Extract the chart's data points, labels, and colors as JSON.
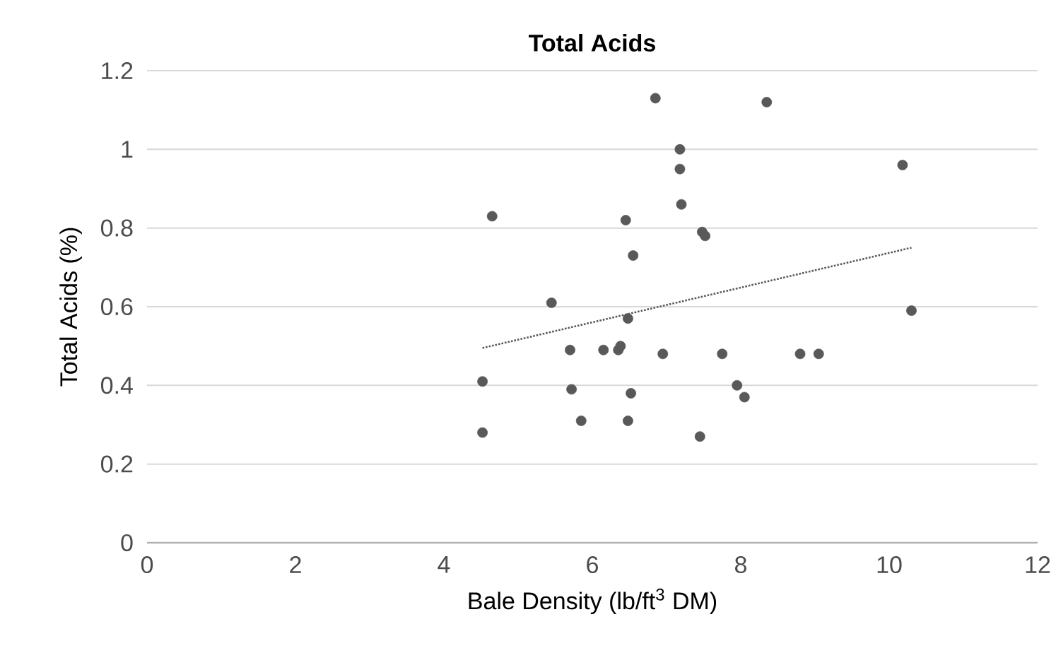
{
  "chart_data": {
    "type": "scatter",
    "title": "Total Acids",
    "xlabel": "Bale Density (lb/ft$^{3}$ DM)",
    "ylabel": "Total Acids (%)",
    "xlim": [
      0,
      12
    ],
    "xticks": [
      0,
      2,
      4,
      6,
      8,
      10,
      12
    ],
    "ylim": [
      0,
      1.2
    ],
    "yticks": [
      0,
      0.2,
      0.4,
      0.6,
      0.8,
      1,
      1.2
    ],
    "grid": "y",
    "legend": false,
    "series": [
      {
        "color": "#595959",
        "marker": "circle",
        "x": [
          4.52,
          4.52,
          4.65,
          5.45,
          5.7,
          5.72,
          5.85,
          6.15,
          6.35,
          6.38,
          6.45,
          6.48,
          6.48,
          6.52,
          6.55,
          6.85,
          6.95,
          7.18,
          7.18,
          7.2,
          7.45,
          7.48,
          7.52,
          7.75,
          7.95,
          8.05,
          8.35,
          8.8,
          9.05,
          10.18,
          10.3
        ],
        "values": [
          0.28,
          0.41,
          0.83,
          0.61,
          0.49,
          0.39,
          0.31,
          0.49,
          0.49,
          0.5,
          0.82,
          0.57,
          0.31,
          0.38,
          0.73,
          1.13,
          0.48,
          1.0,
          0.95,
          0.86,
          0.27,
          0.79,
          0.78,
          0.48,
          0.4,
          0.37,
          1.12,
          0.48,
          0.48,
          0.96,
          0.59
        ]
      },
      {
        "type": "line",
        "color": "#595959",
        "line_style": "dotted",
        "marker": "none",
        "x": [
          4.52,
          10.3
        ],
        "values": [
          0.495,
          0.75
        ]
      }
    ]
  }
}
